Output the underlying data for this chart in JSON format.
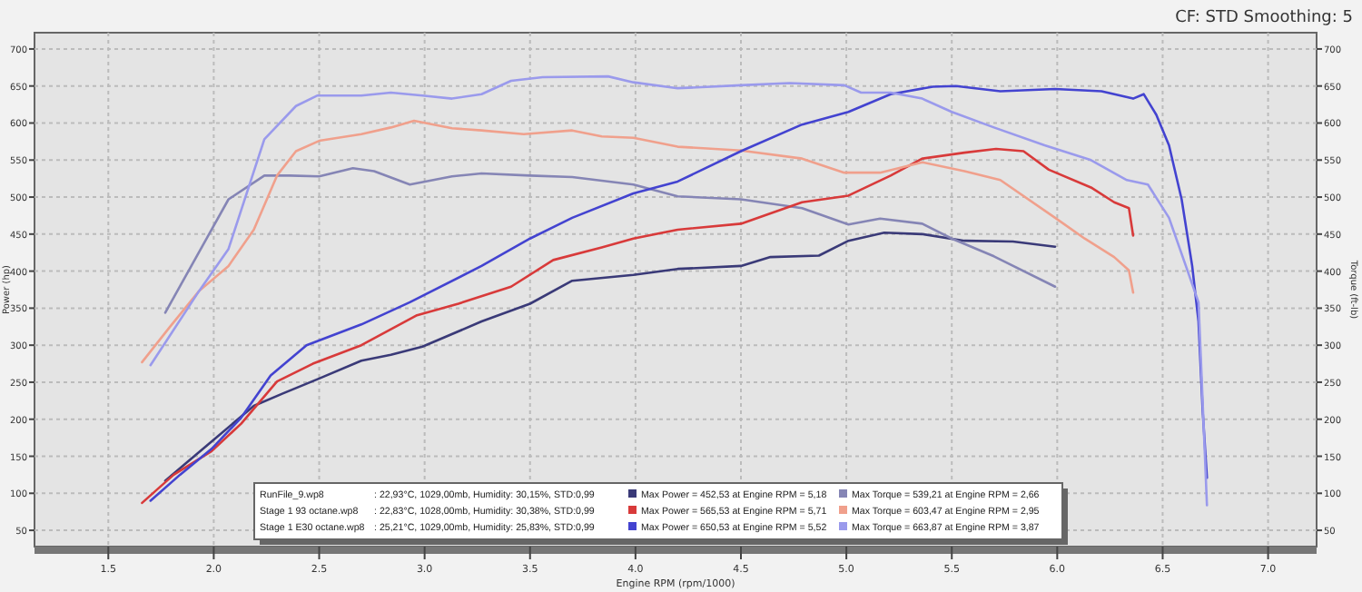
{
  "chart_data": {
    "type": "line",
    "subtitle": "CF: STD Smoothing: 5",
    "xlabel": "Engine RPM (rpm/1000)",
    "ylabel": "Power (hp)",
    "y2label": "Torque (ft-lb)",
    "xlim": [
      1.15,
      7.23
    ],
    "xticks": [
      {
        "value": 1.5,
        "label": "1.5"
      },
      {
        "value": 2,
        "label": "2.0"
      },
      {
        "value": 2.5,
        "label": "2.5"
      },
      {
        "value": 3,
        "label": "3.0"
      },
      {
        "value": 3.5,
        "label": "3.5"
      },
      {
        "value": 4,
        "label": "4.0"
      },
      {
        "value": 4.5,
        "label": "4.5"
      },
      {
        "value": 5,
        "label": "5.0"
      },
      {
        "value": 5.5,
        "label": "5.5"
      },
      {
        "value": 6,
        "label": "6.0"
      },
      {
        "value": 6.5,
        "label": "6.5"
      },
      {
        "value": 7,
        "label": "7.0"
      }
    ],
    "ylim": [
      28,
      722
    ],
    "yticks": [
      50,
      100,
      150,
      200,
      250,
      300,
      350,
      400,
      450,
      500,
      550,
      600,
      650,
      700
    ],
    "y2lim": [
      28,
      722
    ],
    "y2ticks": [
      50,
      100,
      150,
      200,
      250,
      300,
      350,
      400,
      450,
      500,
      550,
      600,
      650,
      700
    ],
    "grid": true,
    "line_style": "solid",
    "marker": "none",
    "series": [
      {
        "color": "#3a3a78",
        "x": [
          1.77,
          1.99,
          2.19,
          2.33,
          2.5,
          2.7,
          2.84,
          2.99,
          3.27,
          3.5,
          3.7,
          3.99,
          4.2,
          4.5,
          4.64,
          4.87,
          5.01,
          5.18,
          5.36,
          5.56,
          5.79,
          5.99
        ],
        "values": [
          117,
          170,
          218,
          235,
          255,
          279,
          287,
          298,
          332,
          356,
          387,
          395,
          403,
          407,
          419,
          421,
          441,
          452,
          450,
          441,
          440,
          433
        ]
      },
      {
        "color": "#8585b5",
        "x": [
          1.77,
          2.07,
          2.24,
          2.36,
          2.5,
          2.66,
          2.76,
          2.93,
          3.13,
          3.27,
          3.5,
          3.7,
          3.99,
          4.2,
          4.5,
          4.79,
          5.01,
          5.16,
          5.36,
          5.5,
          5.7,
          5.99
        ],
        "values": [
          344,
          497,
          529,
          529,
          528,
          539,
          535,
          517,
          528,
          532,
          529,
          527,
          517,
          501,
          497,
          485,
          463,
          471,
          464,
          444,
          420,
          379
        ]
      },
      {
        "color": "#d83a3a",
        "x": [
          1.66,
          1.81,
          1.99,
          2.13,
          2.3,
          2.47,
          2.7,
          2.96,
          3.16,
          3.41,
          3.61,
          3.84,
          3.99,
          4.2,
          4.5,
          4.79,
          5.01,
          5.21,
          5.36,
          5.56,
          5.71,
          5.84,
          5.96,
          6.16,
          6.27,
          6.34,
          6.36
        ],
        "values": [
          87,
          125,
          157,
          194,
          251,
          275,
          300,
          340,
          356,
          379,
          415,
          432,
          444,
          456,
          464,
          493,
          502,
          529,
          552,
          560,
          565,
          562,
          537,
          513,
          493,
          485,
          448
        ]
      },
      {
        "color": "#f0a08c",
        "x": [
          1.66,
          1.79,
          1.93,
          2.07,
          2.19,
          2.3,
          2.39,
          2.5,
          2.7,
          2.84,
          2.95,
          3.13,
          3.27,
          3.47,
          3.7,
          3.84,
          3.99,
          4.2,
          4.5,
          4.79,
          4.99,
          5.16,
          5.36,
          5.56,
          5.73,
          5.99,
          6.13,
          6.27,
          6.34,
          6.36
        ],
        "values": [
          277,
          324,
          373,
          407,
          456,
          529,
          562,
          576,
          585,
          594,
          603,
          593,
          590,
          585,
          590,
          582,
          580,
          568,
          563,
          552,
          533,
          533,
          547,
          535,
          523,
          472,
          444,
          419,
          401,
          371
        ]
      },
      {
        "color": "#4343d0",
        "x": [
          1.7,
          1.84,
          1.99,
          2.13,
          2.27,
          2.44,
          2.7,
          2.93,
          3.27,
          3.5,
          3.7,
          3.99,
          4.2,
          4.5,
          4.79,
          5.01,
          5.21,
          5.41,
          5.52,
          5.73,
          5.99,
          6.21,
          6.36,
          6.41,
          6.47,
          6.53,
          6.59,
          6.64,
          6.67,
          6.69,
          6.71
        ],
        "values": [
          90,
          125,
          160,
          202,
          259,
          300,
          328,
          358,
          407,
          444,
          472,
          505,
          521,
          562,
          598,
          615,
          639,
          649,
          650,
          643,
          646,
          643,
          633,
          639,
          611,
          570,
          497,
          407,
          332,
          210,
          121
        ]
      },
      {
        "color": "#9a9aec",
        "x": [
          1.7,
          1.93,
          2.07,
          2.24,
          2.39,
          2.49,
          2.7,
          2.84,
          2.99,
          3.13,
          3.27,
          3.41,
          3.56,
          3.87,
          3.99,
          4.2,
          4.5,
          4.73,
          4.99,
          5.07,
          5.21,
          5.36,
          5.5,
          5.7,
          5.94,
          6.16,
          6.33,
          6.43,
          6.53,
          6.61,
          6.67,
          6.7,
          6.71
        ],
        "values": [
          273,
          373,
          430,
          578,
          623,
          637,
          637,
          641,
          637,
          633,
          639,
          657,
          662,
          663,
          655,
          647,
          651,
          654,
          651,
          641,
          641,
          633,
          615,
          594,
          570,
          550,
          523,
          517,
          472,
          407,
          358,
          153,
          84
        ]
      }
    ],
    "annotations": [
      "RunFile_9.wp8",
      "Stage 1 93 octane.wp8",
      "Stage 1 E30 octane.wp8",
      ": 22,93°C, 1029,00mb, Humidity: 30,15%, STD:0,99",
      ": 22,83°C, 1028,00mb, Humidity: 30,38%, STD:0,99",
      ": 25,21°C, 1029,00mb, Humidity: 25,83%, STD:0,99",
      "Max Power = 452,53 at Engine RPM = 5,18",
      "Max Power = 565,53 at Engine RPM = 5,71",
      "Max Power = 650,53 at Engine RPM = 5,52",
      "Max Torque = 539,21 at Engine RPM = 2,66",
      "Max Torque = 603,47 at Engine RPM = 2,95",
      "Max Torque = 663,87 at Engine RPM = 3,87"
    ]
  }
}
